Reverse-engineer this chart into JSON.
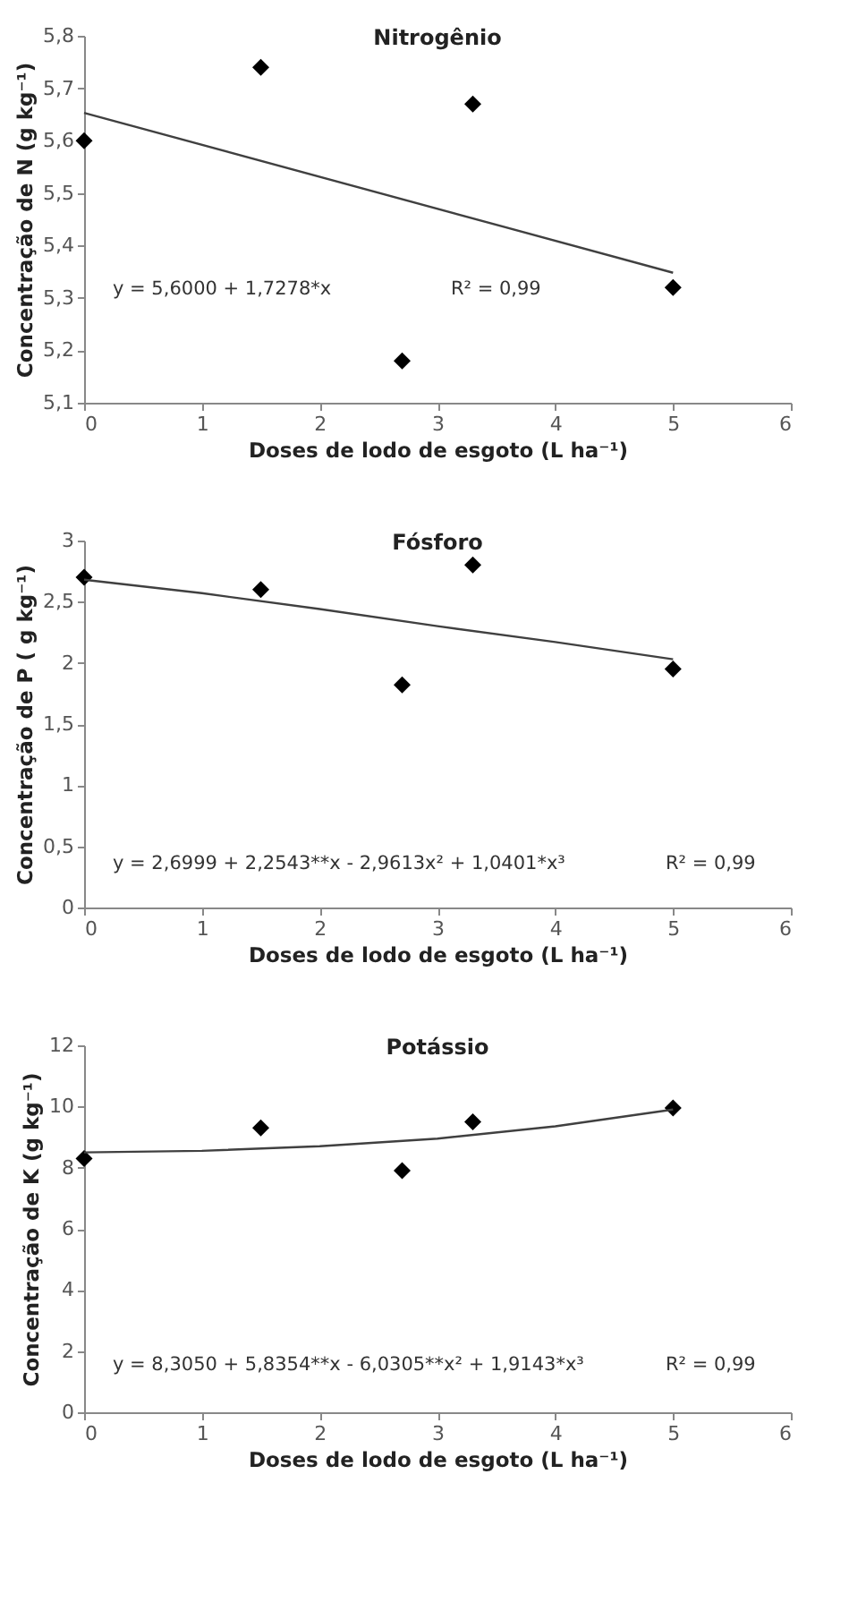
{
  "chart_data": [
    {
      "type": "scatter",
      "title": "Nitrogênio",
      "xlabel": "Doses de lodo de esgoto (L ha⁻¹)",
      "ylabel": "Concentração de N (g kg⁻¹)",
      "x": [
        0,
        1.5,
        2.7,
        3.3,
        5
      ],
      "series": [
        {
          "color": "#000000",
          "marker": "diamond",
          "values": [
            5.6,
            5.74,
            5.18,
            5.67,
            5.32
          ]
        },
        {
          "type": "line",
          "color": "#404040",
          "x": [
            0,
            5
          ],
          "values": [
            5.653,
            5.348
          ]
        }
      ],
      "xlim": [
        0,
        6
      ],
      "xticks": [
        0,
        1,
        2,
        3,
        4,
        5,
        6
      ],
      "ylim": [
        5.1,
        5.8
      ],
      "yticks": [
        {
          "value": 5.1,
          "label": "5,1"
        },
        {
          "value": 5.2,
          "label": "5,2"
        },
        {
          "value": 5.3,
          "label": "5,3"
        },
        {
          "value": 5.4,
          "label": "5,4"
        },
        {
          "value": 5.5,
          "label": "5,5"
        },
        {
          "value": 5.6,
          "label": "5,6"
        },
        {
          "value": 5.7,
          "label": "5,7"
        },
        {
          "value": 5.8,
          "label": "5,8"
        }
      ],
      "annotations": [
        "y = 5,6000 + 1,7278*x",
        "R² = 0,99"
      ]
    },
    {
      "type": "scatter",
      "title": "Fósforo",
      "xlabel": "Doses de lodo de esgoto (L ha⁻¹)",
      "ylabel": "Concentração de P ( g kg⁻¹)",
      "x": [
        0,
        1.5,
        2.7,
        3.3,
        5
      ],
      "series": [
        {
          "color": "#000000",
          "marker": "diamond",
          "values": [
            2.7,
            2.6,
            1.82,
            2.8,
            1.95
          ]
        },
        {
          "type": "line",
          "color": "#404040",
          "x": [
            0,
            1,
            2,
            3,
            4,
            5
          ],
          "values": [
            2.68,
            2.57,
            2.44,
            2.3,
            2.17,
            2.03
          ]
        }
      ],
      "xlim": [
        0,
        6
      ],
      "xticks": [
        0,
        1,
        2,
        3,
        4,
        5,
        6
      ],
      "ylim": [
        0,
        3
      ],
      "yticks": [
        0,
        {
          "value": 0.5,
          "label": "0,5"
        },
        1,
        {
          "value": 1.5,
          "label": "1,5"
        },
        2,
        {
          "value": 2.5,
          "label": "2,5"
        },
        3
      ],
      "annotations": [
        "y = 2,6999 + 2,2543**x - 2,9613x² + 1,0401*x³",
        "R² = 0,99"
      ]
    },
    {
      "type": "scatter",
      "title": "Potássio",
      "xlabel": "Doses de lodo de esgoto (L ha⁻¹)",
      "ylabel": "Concentração de K (g kg⁻¹)",
      "x": [
        0,
        1.5,
        2.7,
        3.3,
        5
      ],
      "series": [
        {
          "color": "#000000",
          "marker": "diamond",
          "values": [
            8.3,
            9.3,
            7.9,
            9.5,
            9.95
          ]
        },
        {
          "type": "line",
          "color": "#404040",
          "x": [
            0,
            1,
            2,
            3,
            4,
            5
          ],
          "values": [
            8.5,
            8.55,
            8.7,
            8.95,
            9.35,
            9.9
          ]
        }
      ],
      "xlim": [
        0,
        6
      ],
      "xticks": [
        0,
        1,
        2,
        3,
        4,
        5,
        6
      ],
      "ylim": [
        0,
        12
      ],
      "yticks": [
        0,
        2,
        4,
        6,
        8,
        10,
        12
      ],
      "annotations": [
        "y = 8,3050 + 5,8354**x - 6,0305**x² + 1,9143*x³",
        "R² = 0,99"
      ]
    }
  ]
}
